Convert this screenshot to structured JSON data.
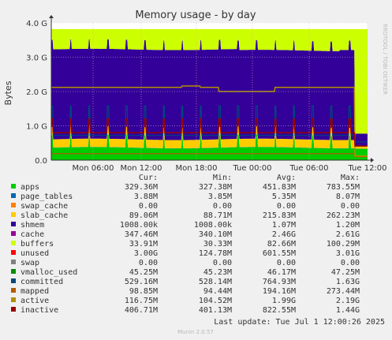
{
  "chart_data": {
    "type": "area",
    "title": "Memory usage - by day",
    "ylabel": "Bytes",
    "side_label": "RRDTOOL / TOBI OETIKER",
    "y_ticks": [
      "0.0",
      "1.0 G",
      "2.0 G",
      "3.0 G",
      "4.0 G"
    ],
    "ylim": [
      0,
      4000000000
    ],
    "x_ticks": [
      "Mon 06:00",
      "Mon 12:00",
      "Mon 18:00",
      "Tue 00:00",
      "Tue 06:00",
      "Tue 12:00"
    ],
    "grid": true,
    "legend_placement": "bottom",
    "table_headers": [
      "Cur:",
      "Min:",
      "Avg:",
      "Max:"
    ],
    "series": [
      {
        "name": "apps",
        "color": "#00cc00",
        "cur": "329.36M",
        "min": "327.38M",
        "avg": "451.83M",
        "max": "783.55M"
      },
      {
        "name": "page_tables",
        "color": "#0066b3",
        "cur": "3.88M",
        "min": "3.85M",
        "avg": "5.35M",
        "max": "8.07M"
      },
      {
        "name": "swap_cache",
        "color": "#ff8000",
        "cur": "0.00",
        "min": "0.00",
        "avg": "0.00",
        "max": "0.00"
      },
      {
        "name": "slab_cache",
        "color": "#ffcc00",
        "cur": "89.06M",
        "min": "88.71M",
        "avg": "215.83M",
        "max": "262.23M"
      },
      {
        "name": "shmem",
        "color": "#330099",
        "cur": "1008.00k",
        "min": "1008.00k",
        "avg": "1.07M",
        "max": "1.20M"
      },
      {
        "name": "cache",
        "color": "#990099",
        "cur": "347.46M",
        "min": "340.10M",
        "avg": "2.46G",
        "max": "2.61G"
      },
      {
        "name": "buffers",
        "color": "#ccff00",
        "cur": "33.91M",
        "min": "30.33M",
        "avg": "82.66M",
        "max": "100.29M"
      },
      {
        "name": "unused",
        "color": "#ff0000",
        "cur": "3.00G",
        "min": "124.78M",
        "avg": "601.55M",
        "max": "3.01G"
      },
      {
        "name": "swap",
        "color": "#808080",
        "cur": "0.00",
        "min": "0.00",
        "avg": "0.00",
        "max": "0.00"
      },
      {
        "name": "vmalloc_used",
        "color": "#008f00",
        "cur": "45.25M",
        "min": "45.23M",
        "avg": "46.17M",
        "max": "47.25M"
      },
      {
        "name": "committed",
        "color": "#00487d",
        "cur": "529.16M",
        "min": "528.14M",
        "avg": "764.93M",
        "max": "1.63G"
      },
      {
        "name": "mapped",
        "color": "#b35a00",
        "cur": "98.85M",
        "min": "94.44M",
        "avg": "194.16M",
        "max": "273.44M"
      },
      {
        "name": "active",
        "color": "#b38f00",
        "cur": "116.75M",
        "min": "104.52M",
        "avg": "1.99G",
        "max": "2.19G"
      },
      {
        "name": "inactive",
        "color": "#990000",
        "cur": "406.71M",
        "min": "401.13M",
        "avg": "822.55M",
        "max": "1.44G"
      }
    ],
    "area_fills": {
      "apps": "#00cc00",
      "slab_cache": "#ffcc00",
      "cache": "#330099",
      "unused": "#ccff00"
    },
    "last_update": "Last update: Tue Jul  1 12:00:26 2025",
    "footer": "Munin 2.0.57"
  }
}
